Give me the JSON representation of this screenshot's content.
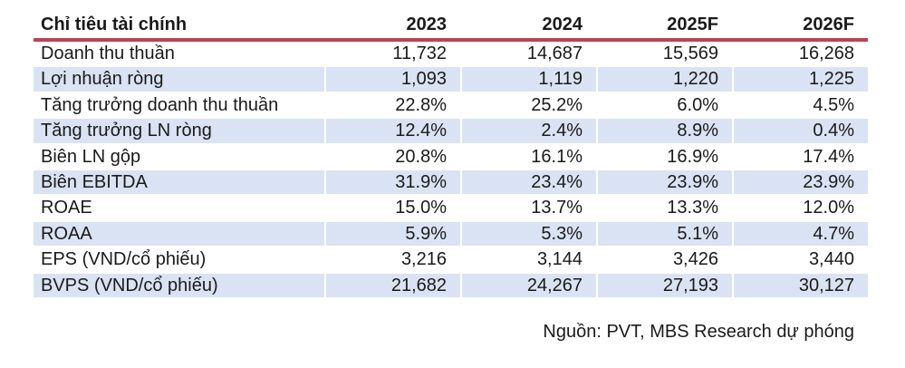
{
  "table": {
    "header": {
      "label": "Chỉ tiêu tài chính",
      "columns": [
        "2023",
        "2024",
        "2025F",
        "2026F"
      ]
    },
    "rows": [
      {
        "label": "Doanh thu thuần",
        "values": [
          "11,732",
          "14,687",
          "15,569",
          "16,268"
        ]
      },
      {
        "label": "Lợi nhuận ròng",
        "values": [
          "1,093",
          "1,119",
          "1,220",
          "1,225"
        ]
      },
      {
        "label": "Tăng trưởng doanh thu thuần",
        "values": [
          "22.8%",
          "25.2%",
          "6.0%",
          "4.5%"
        ]
      },
      {
        "label": "Tăng trưởng LN ròng",
        "values": [
          "12.4%",
          "2.4%",
          "8.9%",
          "0.4%"
        ]
      },
      {
        "label": "Biên LN gộp",
        "values": [
          "20.8%",
          "16.1%",
          "16.9%",
          "17.4%"
        ]
      },
      {
        "label": "Biên EBITDA",
        "values": [
          "31.9%",
          "23.4%",
          "23.9%",
          "23.9%"
        ]
      },
      {
        "label": "ROAE",
        "values": [
          "15.0%",
          "13.7%",
          "13.3%",
          "12.0%"
        ]
      },
      {
        "label": "ROAA",
        "values": [
          "5.9%",
          "5.3%",
          "5.1%",
          "4.7%"
        ]
      },
      {
        "label": "EPS (VND/cổ phiếu)",
        "values": [
          "3,216",
          "3,144",
          "3,426",
          "3,440"
        ]
      },
      {
        "label": "BVPS (VND/cổ phiếu)",
        "values": [
          "21,682",
          "24,267",
          "27,193",
          "30,127"
        ]
      }
    ]
  },
  "footer": {
    "source_note": "Nguồn: PVT, MBS Research dự phóng"
  },
  "colors": {
    "accent_line": "#bd4257",
    "row_alt_background": "#dae3f3",
    "text": "#1a1a1a"
  }
}
